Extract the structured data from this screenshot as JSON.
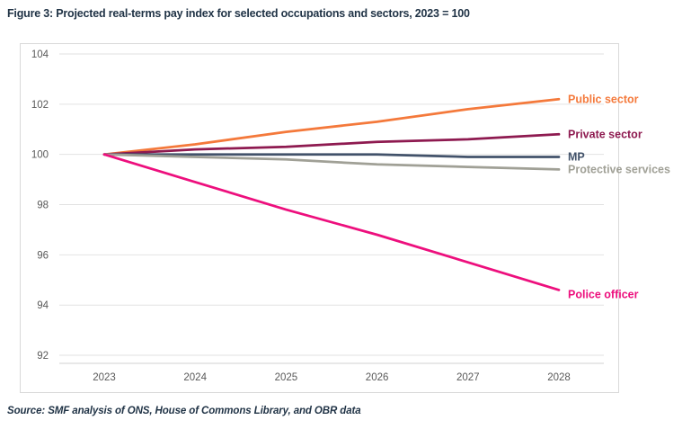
{
  "page": {
    "title": "Figure 3: Projected real-terms pay index for selected occupations and sectors, 2023 = 100",
    "source": "Source: SMF analysis of ONS, House of Commons Library, and OBR data"
  },
  "colors": {
    "title_text": "#1F3245",
    "axis_text": "#595959",
    "gridline": "#E2E2E2",
    "axis_line": "#D2D2D2",
    "chart_border": "#D9D9D9"
  },
  "chart_data": {
    "type": "line",
    "title": "Figure 3: Projected real-terms pay index for selected occupations and sectors, 2023 = 100",
    "x": [
      2023,
      2024,
      2025,
      2026,
      2027,
      2028
    ],
    "series": [
      {
        "name": "Public sector",
        "color": "#F4793B",
        "values": [
          100,
          100.4,
          100.9,
          101.3,
          101.8,
          102.2
        ]
      },
      {
        "name": "Private sector",
        "color": "#8E1A50",
        "values": [
          100,
          100.2,
          100.3,
          100.5,
          100.6,
          100.8
        ]
      },
      {
        "name": "MP",
        "color": "#42526A",
        "values": [
          100,
          100,
          100,
          100,
          99.9,
          99.9
        ]
      },
      {
        "name": "Protective services",
        "color": "#A0A096",
        "values": [
          100,
          99.9,
          99.8,
          99.6,
          99.5,
          99.4
        ]
      },
      {
        "name": "Police officer",
        "color": "#ED0F7D",
        "values": [
          100,
          98.9,
          97.8,
          96.8,
          95.7,
          94.6
        ]
      }
    ],
    "yticks": [
      92,
      94,
      96,
      98,
      100,
      102,
      104
    ],
    "ylim": [
      92,
      104
    ],
    "xlabel": "",
    "ylabel": "",
    "grid": "horizontal",
    "legend_position": "end-of-line labels"
  }
}
